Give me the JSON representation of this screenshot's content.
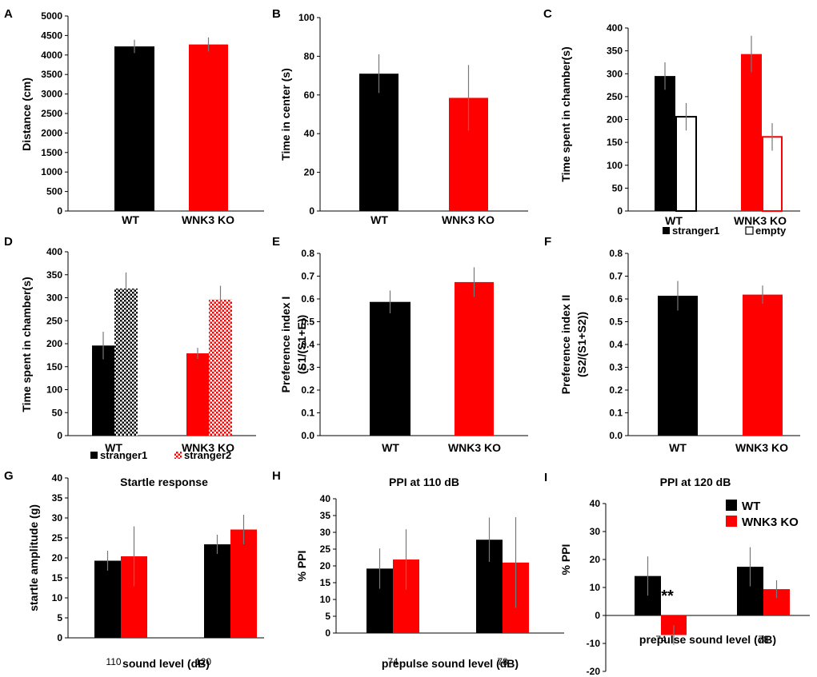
{
  "figure": {
    "colors": {
      "wt": "#000000",
      "ko": "#ff0000",
      "error": "#777777",
      "axis": "#000000"
    }
  },
  "chart_data": [
    {
      "panel": "A",
      "type": "bar",
      "title": "",
      "ylabel": "Distance (cm)",
      "xlabel": "",
      "categories": [
        "WT",
        "WNK3 KO"
      ],
      "series": [
        {
          "name": "Distance",
          "colors": [
            "#000000",
            "#ff0000"
          ],
          "values": [
            4220,
            4270
          ],
          "errors": [
            170,
            180
          ]
        }
      ],
      "ylim": [
        0,
        5000
      ],
      "yticks": [
        0,
        500,
        1000,
        1500,
        2000,
        2500,
        3000,
        3500,
        4000,
        4500,
        5000
      ],
      "legend": []
    },
    {
      "panel": "B",
      "type": "bar",
      "title": "",
      "ylabel": "Time in center (s)",
      "xlabel": "",
      "categories": [
        "WT",
        "WNK3 KO"
      ],
      "series": [
        {
          "name": "Time in center",
          "colors": [
            "#000000",
            "#ff0000"
          ],
          "values": [
            71,
            58.5
          ],
          "errors": [
            10,
            17
          ]
        }
      ],
      "ylim": [
        0,
        100
      ],
      "yticks": [
        0,
        20,
        40,
        60,
        80,
        100
      ],
      "legend": []
    },
    {
      "panel": "C",
      "type": "bar",
      "title": "",
      "ylabel": "Time spent in chamber(s)",
      "xlabel": "",
      "categories": [
        "WT",
        "WNK3 KO"
      ],
      "series": [
        {
          "name": "stranger1",
          "style": "solid",
          "colors": [
            "#000000",
            "#ff0000"
          ],
          "values": [
            295,
            343
          ],
          "errors": [
            30,
            40
          ]
        },
        {
          "name": "empty",
          "style": "hollow",
          "colors": [
            "#000000",
            "#ff0000"
          ],
          "values": [
            206,
            162
          ],
          "errors": [
            30,
            30
          ]
        }
      ],
      "ylim": [
        0,
        400
      ],
      "yticks": [
        0,
        50,
        100,
        150,
        200,
        250,
        300,
        350,
        400
      ],
      "legend": [
        "stranger1",
        "empty"
      ]
    },
    {
      "panel": "D",
      "type": "bar",
      "title": "",
      "ylabel": "Time spent in chamber(s)",
      "xlabel": "",
      "categories": [
        "WT",
        "WNK3 KO"
      ],
      "series": [
        {
          "name": "stranger1",
          "style": "solid",
          "colors": [
            "#000000",
            "#ff0000"
          ],
          "values": [
            196,
            179
          ],
          "errors": [
            30,
            12
          ]
        },
        {
          "name": "stranger2",
          "style": "checkered",
          "colors": [
            "#000000",
            "#ff0000"
          ],
          "values": [
            320,
            296
          ],
          "errors": [
            35,
            30
          ]
        }
      ],
      "ylim": [
        0,
        400
      ],
      "yticks": [
        0,
        50,
        100,
        150,
        200,
        250,
        300,
        350,
        400
      ],
      "legend": [
        "stranger1",
        "stranger2"
      ]
    },
    {
      "panel": "E",
      "type": "bar",
      "title": "",
      "ylabel": "Preference index I",
      "ylabel2": "(S1/(S1+E))",
      "xlabel": "",
      "categories": [
        "WT",
        "WNK3 KO"
      ],
      "series": [
        {
          "name": "Preference index I",
          "colors": [
            "#000000",
            "#ff0000"
          ],
          "values": [
            0.587,
            0.674
          ],
          "errors": [
            0.05,
            0.065
          ]
        }
      ],
      "ylim": [
        0,
        0.8
      ],
      "yticks": [
        0.0,
        0.1,
        0.2,
        0.3,
        0.4,
        0.5,
        0.6,
        0.7,
        0.8
      ],
      "legend": []
    },
    {
      "panel": "F",
      "type": "bar",
      "title": "",
      "ylabel": "Preference index II",
      "ylabel2": "(S2/(S1+S2))",
      "xlabel": "",
      "categories": [
        "WT",
        "WNK3 KO"
      ],
      "series": [
        {
          "name": "Preference index II",
          "colors": [
            "#000000",
            "#ff0000"
          ],
          "values": [
            0.614,
            0.619
          ],
          "errors": [
            0.065,
            0.04
          ]
        }
      ],
      "ylim": [
        0,
        0.8
      ],
      "yticks": [
        0.0,
        0.1,
        0.2,
        0.3,
        0.4,
        0.5,
        0.6,
        0.7,
        0.8
      ],
      "legend": []
    },
    {
      "panel": "G",
      "type": "bar",
      "title": "Startle response",
      "ylabel": "startle amplitude (g)",
      "xlabel": "sound level (dB)",
      "categories": [
        "110",
        "120"
      ],
      "series": [
        {
          "name": "WT",
          "colors": [
            "#000000",
            "#000000"
          ],
          "values": [
            19.3,
            23.4
          ],
          "errors": [
            2.5,
            2.4
          ]
        },
        {
          "name": "WNK3 KO",
          "colors": [
            "#ff0000",
            "#ff0000"
          ],
          "values": [
            20.4,
            27.1
          ],
          "errors": [
            7.5,
            3.7
          ]
        }
      ],
      "ylim": [
        0,
        40
      ],
      "yticks": [
        0,
        5,
        10,
        15,
        20,
        25,
        30,
        35,
        40
      ],
      "legend": []
    },
    {
      "panel": "H",
      "type": "bar",
      "title": "PPI at 110 dB",
      "ylabel": "% PPI",
      "xlabel": "prepulse sound level (dB)",
      "categories": [
        "74",
        "78"
      ],
      "series": [
        {
          "name": "WT",
          "colors": [
            "#000000",
            "#000000"
          ],
          "values": [
            19.2,
            27.8
          ],
          "errors": [
            6,
            6.6
          ]
        },
        {
          "name": "WNK3 KO",
          "colors": [
            "#ff0000",
            "#ff0000"
          ],
          "values": [
            21.9,
            21
          ],
          "errors": [
            9,
            13.5
          ]
        }
      ],
      "ylim": [
        0,
        40
      ],
      "yticks": [
        0,
        5,
        10,
        15,
        20,
        25,
        30,
        35,
        40
      ],
      "legend": []
    },
    {
      "panel": "I",
      "type": "bar",
      "title": "PPI at 120 dB",
      "ylabel": "% PPI",
      "xlabel": "prepulse sound level (dB)",
      "categories": [
        "74",
        "78"
      ],
      "series": [
        {
          "name": "WT",
          "colors": [
            "#000000",
            "#000000"
          ],
          "values": [
            14.1,
            17.4
          ],
          "errors": [
            7,
            7
          ]
        },
        {
          "name": "WNK3 KO",
          "colors": [
            "#ff0000",
            "#ff0000"
          ],
          "values": [
            -7,
            9.4
          ],
          "errors": [
            3.5,
            3.2
          ]
        }
      ],
      "ylim": [
        -20,
        40
      ],
      "yticks": [
        -20,
        -10,
        0,
        10,
        20,
        30,
        40
      ],
      "legend": [
        "WT",
        "WNK3 KO"
      ],
      "annotations": [
        {
          "text": "**",
          "category": "74"
        }
      ]
    }
  ]
}
